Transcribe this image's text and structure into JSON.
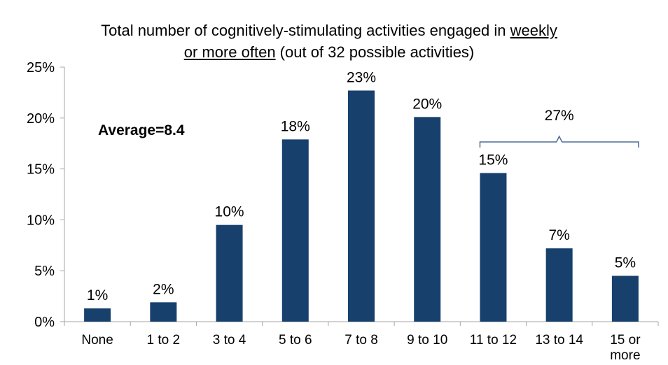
{
  "chart_data": {
    "type": "bar",
    "title_parts": {
      "line1_prefix": "Total number of cognitively-stimulating activities engaged in ",
      "line1_underlined": "weekly",
      "line2_underlined": "or more often",
      "line2_suffix": " (out of 32 possible activities)"
    },
    "categories": [
      "None",
      "1 to 2",
      "3 to 4",
      "5 to 6",
      "7 to 8",
      "9 to 10",
      "11 to 12",
      "13 to 14",
      "15 or|more"
    ],
    "values": [
      1.3,
      1.9,
      9.5,
      17.9,
      22.7,
      20.1,
      14.6,
      7.2,
      4.5
    ],
    "data_labels": [
      "1%",
      "2%",
      "10%",
      "18%",
      "23%",
      "20%",
      "15%",
      "7%",
      "5%"
    ],
    "ylim": [
      0,
      25
    ],
    "yticks": [
      0,
      5,
      10,
      15,
      20,
      25
    ],
    "ytick_labels": [
      "0%",
      "5%",
      "10%",
      "15%",
      "20%",
      "25%"
    ],
    "xlabel": "",
    "ylabel": "",
    "grid": false,
    "annotations": {
      "average": "Average=8.4",
      "bracket_label": "27%",
      "bracket_from_category": 6,
      "bracket_to_category": 8
    },
    "colors": {
      "bar": "#17406D",
      "bracket": "#4A6E98",
      "axis": "#A6A6A6"
    }
  }
}
